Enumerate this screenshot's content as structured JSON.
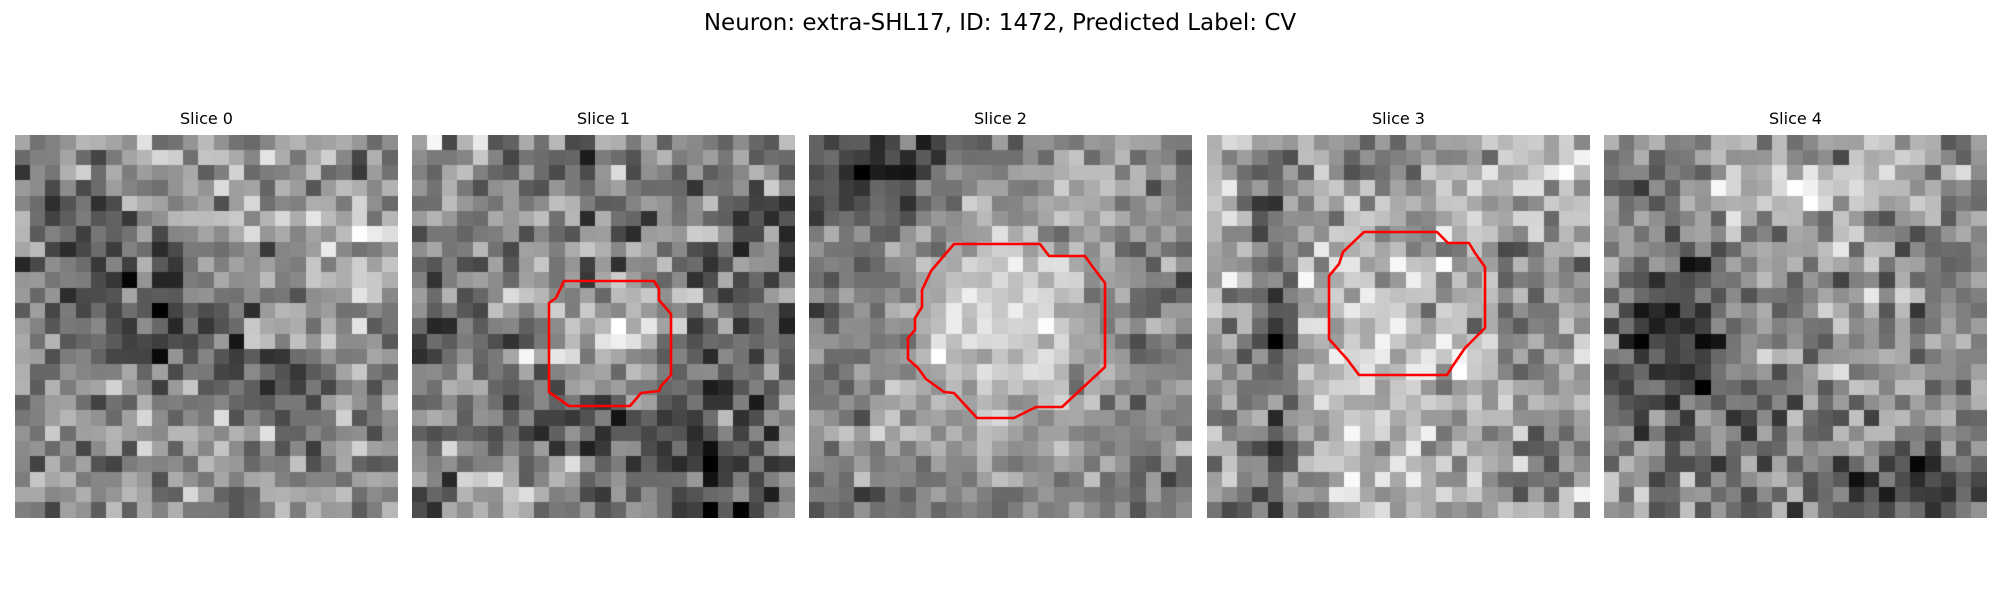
{
  "figure": {
    "title": "Neuron: extra-SHL17, ID: 1472, Predicted Label: CV",
    "neuron": "extra-SHL17",
    "id": 1472,
    "predicted_label": "CV",
    "colormap": "gray",
    "contour_color": "#ff0000",
    "grid_size": 25
  },
  "panels": [
    {
      "title": "Slice 0",
      "has_contour": false,
      "appearance": "dark noisy patch, no visible cell body"
    },
    {
      "title": "Slice 1",
      "has_contour": true,
      "appearance": "small bright cell body outlined in red"
    },
    {
      "title": "Slice 2",
      "has_contour": true,
      "appearance": "large bright cell body outlined in red"
    },
    {
      "title": "Slice 3",
      "has_contour": true,
      "appearance": "medium cell body outlined in red, dark vertical bands at sides"
    },
    {
      "title": "Slice 4",
      "has_contour": false,
      "appearance": "noisy patch with dark blotches lower right, no contour"
    }
  ]
}
